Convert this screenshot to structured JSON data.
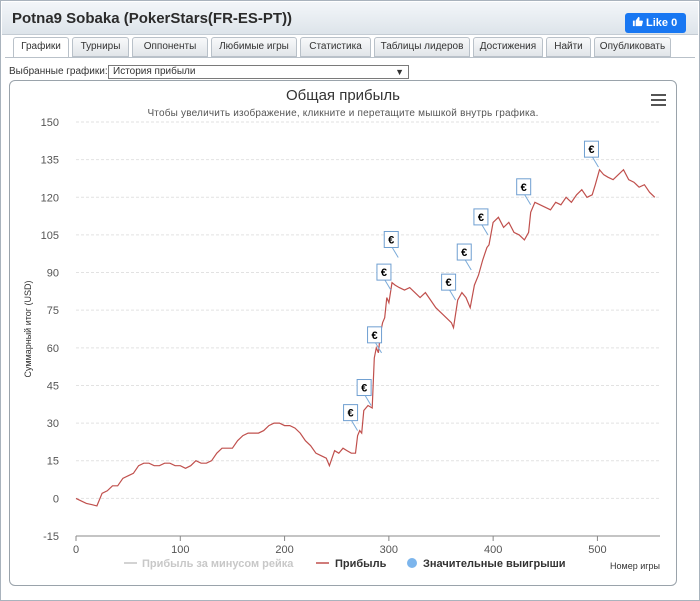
{
  "window": {
    "title": "Potna9 Sobaka (PokerStars(FR-ES-PT))",
    "like_label": "Like 0"
  },
  "tabs": [
    {
      "label": "Графики",
      "active": true
    },
    {
      "label": "Турниры"
    },
    {
      "label": "Оппоненты"
    },
    {
      "label": "Любимые игры"
    },
    {
      "label": "Статистика"
    },
    {
      "label": "Таблицы лидеров"
    },
    {
      "label": "Достижения"
    },
    {
      "label": "Найти"
    },
    {
      "label": "Опубликовать"
    }
  ],
  "selector": {
    "label": "Выбранные графики:",
    "value": "История прибыли"
  },
  "chart_data": {
    "type": "line",
    "title": "Общая прибыль",
    "subtitle": "Чтобы увеличить изображение, кликните и перетащите мышкой внутрь графика.",
    "xlabel": "Номер игры",
    "ylabel": "Суммарный итог (USD)",
    "xlim": [
      0,
      560
    ],
    "ylim": [
      -15,
      150
    ],
    "x_ticks": [
      0,
      100,
      200,
      300,
      400,
      500
    ],
    "y_ticks": [
      -15,
      0,
      15,
      30,
      45,
      60,
      75,
      90,
      105,
      120,
      135,
      150
    ],
    "legend": [
      "Прибыль за минусом рейка",
      "Прибыль",
      "Значительные выигрыши"
    ],
    "legend_position": "bottom",
    "series": [
      {
        "name": "Прибыль",
        "color": "#c0504d",
        "points": [
          [
            0,
            0
          ],
          [
            5,
            -1
          ],
          [
            10,
            -2
          ],
          [
            15,
            -2.5
          ],
          [
            20,
            -3
          ],
          [
            25,
            2
          ],
          [
            30,
            3
          ],
          [
            35,
            5
          ],
          [
            40,
            5
          ],
          [
            45,
            8
          ],
          [
            50,
            9
          ],
          [
            55,
            10
          ],
          [
            60,
            13
          ],
          [
            65,
            14
          ],
          [
            70,
            14
          ],
          [
            75,
            13
          ],
          [
            80,
            13
          ],
          [
            85,
            14
          ],
          [
            90,
            14
          ],
          [
            95,
            13
          ],
          [
            100,
            13
          ],
          [
            105,
            12
          ],
          [
            110,
            13
          ],
          [
            115,
            15
          ],
          [
            120,
            14
          ],
          [
            125,
            14
          ],
          [
            130,
            15
          ],
          [
            135,
            18
          ],
          [
            140,
            20
          ],
          [
            145,
            20
          ],
          [
            150,
            20
          ],
          [
            155,
            23
          ],
          [
            160,
            25
          ],
          [
            165,
            26
          ],
          [
            170,
            26
          ],
          [
            175,
            26
          ],
          [
            180,
            27
          ],
          [
            185,
            29
          ],
          [
            190,
            30
          ],
          [
            195,
            30
          ],
          [
            200,
            29
          ],
          [
            205,
            29
          ],
          [
            210,
            28
          ],
          [
            215,
            26
          ],
          [
            220,
            23
          ],
          [
            225,
            21
          ],
          [
            230,
            18
          ],
          [
            235,
            17
          ],
          [
            240,
            16
          ],
          [
            243,
            13
          ],
          [
            248,
            19
          ],
          [
            252,
            18
          ],
          [
            256,
            20
          ],
          [
            260,
            19
          ],
          [
            264,
            18
          ],
          [
            268,
            18
          ],
          [
            270,
            25
          ],
          [
            272,
            27
          ],
          [
            274,
            26
          ],
          [
            276,
            35
          ],
          [
            280,
            37
          ],
          [
            284,
            36
          ],
          [
            286,
            56
          ],
          [
            288,
            60
          ],
          [
            290,
            58
          ],
          [
            292,
            66
          ],
          [
            294,
            70
          ],
          [
            296,
            72
          ],
          [
            298,
            80
          ],
          [
            300,
            78
          ],
          [
            303,
            86
          ],
          [
            306,
            85
          ],
          [
            310,
            84
          ],
          [
            315,
            83
          ],
          [
            320,
            84
          ],
          [
            325,
            82
          ],
          [
            330,
            80
          ],
          [
            335,
            82
          ],
          [
            340,
            79
          ],
          [
            345,
            76
          ],
          [
            350,
            74
          ],
          [
            355,
            72
          ],
          [
            360,
            70
          ],
          [
            362,
            68
          ],
          [
            366,
            79
          ],
          [
            370,
            82
          ],
          [
            374,
            80
          ],
          [
            378,
            76
          ],
          [
            382,
            85
          ],
          [
            386,
            89
          ],
          [
            390,
            95
          ],
          [
            394,
            100
          ],
          [
            396,
            101
          ],
          [
            400,
            110
          ],
          [
            405,
            112
          ],
          [
            410,
            108
          ],
          [
            415,
            110
          ],
          [
            420,
            106
          ],
          [
            425,
            105
          ],
          [
            430,
            103
          ],
          [
            434,
            106
          ],
          [
            436,
            114
          ],
          [
            440,
            118
          ],
          [
            445,
            117
          ],
          [
            450,
            116
          ],
          [
            455,
            115
          ],
          [
            460,
            118
          ],
          [
            465,
            117
          ],
          [
            470,
            120
          ],
          [
            475,
            118
          ],
          [
            480,
            121
          ],
          [
            485,
            123
          ],
          [
            490,
            120
          ],
          [
            495,
            121
          ],
          [
            498,
            125
          ],
          [
            502,
            131
          ],
          [
            506,
            129
          ],
          [
            510,
            128
          ],
          [
            515,
            127
          ],
          [
            520,
            129
          ],
          [
            525,
            131
          ],
          [
            530,
            127
          ],
          [
            535,
            126
          ],
          [
            540,
            124
          ],
          [
            545,
            125
          ],
          [
            550,
            122
          ],
          [
            555,
            120
          ]
        ]
      }
    ],
    "big_wins": [
      [
        270,
        27
      ],
      [
        283,
        37
      ],
      [
        293,
        58
      ],
      [
        302,
        83
      ],
      [
        309,
        96
      ],
      [
        364,
        79
      ],
      [
        379,
        91
      ],
      [
        395,
        105
      ],
      [
        436,
        117
      ],
      [
        501,
        132
      ]
    ],
    "big_win_symbol": "€"
  }
}
